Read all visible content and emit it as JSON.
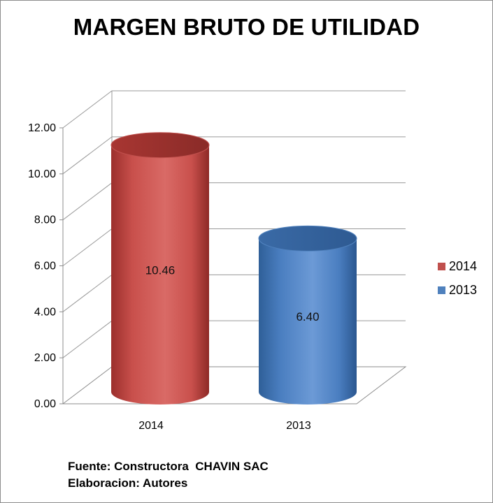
{
  "chart_data": {
    "type": "bar",
    "title": "MARGEN BRUTO DE UTILIDAD",
    "categories": [
      "2014",
      "2013"
    ],
    "series": [
      {
        "name": "2014",
        "color": "#c0504d",
        "values": [
          10.46,
          null
        ]
      },
      {
        "name": "2013",
        "color": "#4f81bd",
        "values": [
          null,
          6.4
        ]
      }
    ],
    "data_labels": [
      "10.46",
      "6.40"
    ],
    "y_ticks": [
      "0.00",
      "2.00",
      "4.00",
      "6.00",
      "8.00",
      "10.00",
      "12.00"
    ],
    "ylim": [
      0,
      12
    ],
    "grid": true,
    "legend_position": "right",
    "style": "3d-cylinder"
  },
  "legend": [
    {
      "label": "2014",
      "color": "#c0504d"
    },
    {
      "label": "2013",
      "color": "#4f81bd"
    }
  ],
  "footer": {
    "source": "Fuente: Constructora  CHAVIN SAC",
    "author": "Elaboracion: Autores"
  }
}
